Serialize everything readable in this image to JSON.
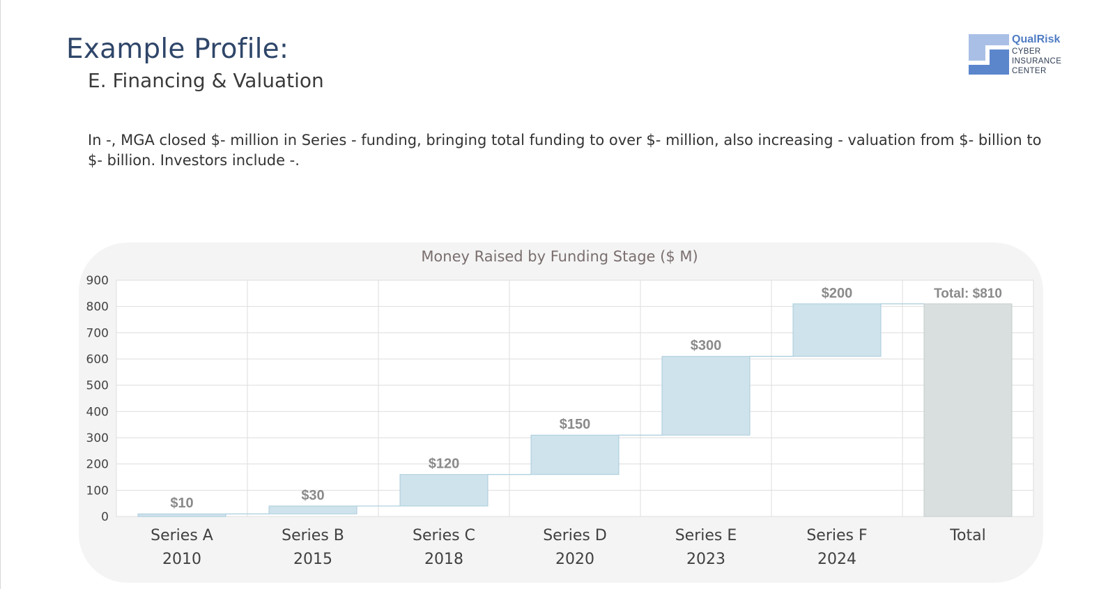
{
  "header": {
    "title": "Example Profile:",
    "subtitle": "E. Financing & Valuation"
  },
  "logo": {
    "brand": "QualRisk",
    "line1": "CYBER",
    "line2": "INSURANCE",
    "line3": "CENTER",
    "colors": {
      "light": "#a9bfe6",
      "dark": "#5b86cc"
    }
  },
  "body": {
    "paragraph": "In -, MGA closed $- million in Series - funding, bringing total funding to over $- million, also increasing - valuation from $- billion to $- billion.  Investors include -."
  },
  "chart_data": {
    "type": "waterfall",
    "title": "Money Raised by Funding Stage ($ M)",
    "ylim": [
      0,
      900
    ],
    "yticks": [
      "0",
      "100",
      "200",
      "300",
      "400",
      "500",
      "600",
      "700",
      "800",
      "900"
    ],
    "categories": [
      {
        "stage": "Series A",
        "year": "2010"
      },
      {
        "stage": "Series B",
        "year": "2015"
      },
      {
        "stage": "Series C",
        "year": "2018"
      },
      {
        "stage": "Series D",
        "year": "2020"
      },
      {
        "stage": "Series E",
        "year": "2023"
      },
      {
        "stage": "Series F",
        "year": "2024"
      },
      {
        "stage": "Total",
        "year": ""
      }
    ],
    "values": [
      10,
      30,
      120,
      150,
      300,
      200,
      810
    ],
    "data_labels": [
      "$10",
      "$30",
      "$120",
      "$150",
      "$300",
      "$200",
      "Total: $810"
    ],
    "grid": true,
    "legend": "none",
    "colors": {
      "increment_fill": "#cfe3ec",
      "increment_stroke": "#a8cbdb",
      "total_fill": "#d9dfdf",
      "total_stroke": "#c3cccc",
      "connector": "#a8cbdb",
      "label": "#8a8a8a",
      "title": "#7a6e6e",
      "grid": "#dedede"
    }
  }
}
